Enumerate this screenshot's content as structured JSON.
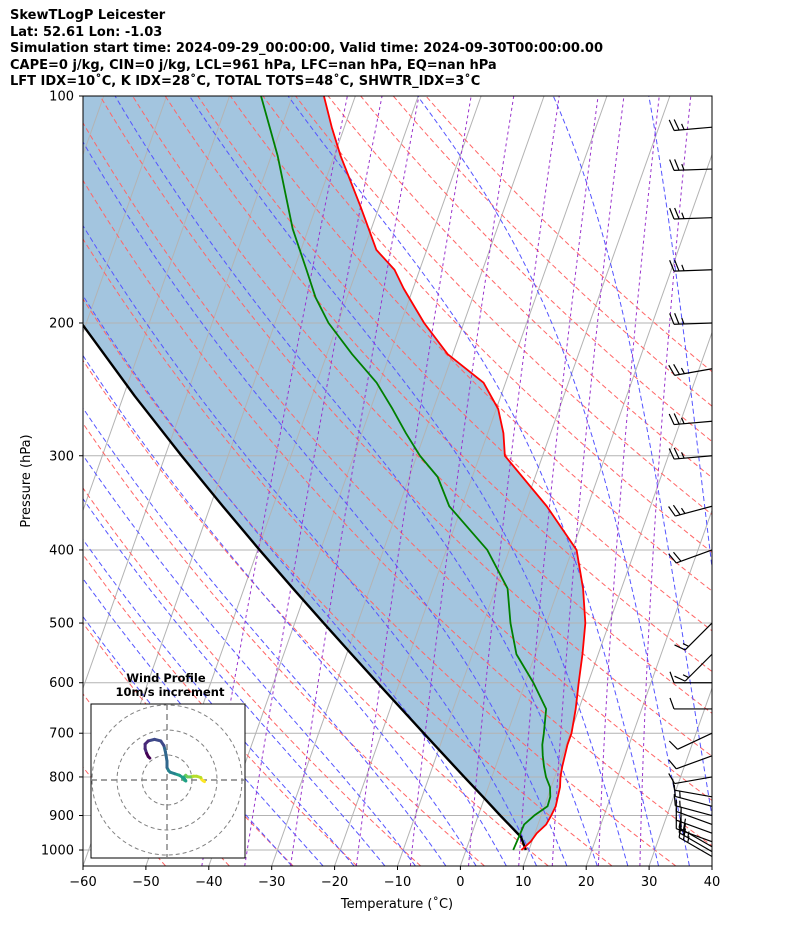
{
  "header": {
    "title": "SkewTLogP Leicester",
    "location": "Lat: 52.61   Lon: -1.03",
    "times": "Simulation start time: 2024-09-29_00:00:00, Valid time: 2024-09-30T00:00:00.00",
    "params": "CAPE=0 j/kg, CIN=0 j/kg, LCL=961 hPa, LFC=nan hPa, EQ=nan hPa",
    "indices": "LFT IDX=10˚C, K IDX=28˚C, TOTAL TOTS=48˚C, SHWTR_IDX=3˚C"
  },
  "chart_data": {
    "type": "line",
    "subtype": "skew-T log-P diagram",
    "xlabel": "Temperature (˚C)",
    "ylabel": "Pressure (hPa)",
    "xlim": [
      -60,
      40
    ],
    "ylim": [
      1050,
      100
    ],
    "y_scale": "log",
    "x_ticks": [
      "−60",
      "−50",
      "−40",
      "−30",
      "−20",
      "−10",
      "0",
      "10",
      "20",
      "30",
      "40"
    ],
    "x_tick_values": [
      -60,
      -50,
      -40,
      -30,
      -20,
      -10,
      0,
      10,
      20,
      30,
      40
    ],
    "y_ticks": [
      "100",
      "200",
      "300",
      "400",
      "500",
      "600",
      "700",
      "800",
      "900",
      "1000"
    ],
    "y_tick_values": [
      100,
      200,
      300,
      400,
      500,
      600,
      700,
      800,
      900,
      1000
    ],
    "grid": true,
    "colors": {
      "temperature": "#ff0000",
      "dewpoint": "#008000",
      "parcel": "#000000",
      "cape_fill": "#a3c5df",
      "dry_adiabat": "#ff6666",
      "moist_adiabat": "#5555ff",
      "mixing_ratio": "#9933cc",
      "isotherm": "#b3b3b3"
    },
    "series": [
      {
        "role": "temperature",
        "points": [
          [
            1000,
            8.8
          ],
          [
            975,
            9.8
          ],
          [
            950,
            10.3
          ],
          [
            925,
            11.3
          ],
          [
            900,
            11.6
          ],
          [
            875,
            11.8
          ],
          [
            850,
            11.6
          ],
          [
            825,
            11.4
          ],
          [
            800,
            10.9
          ],
          [
            775,
            10.6
          ],
          [
            750,
            10.4
          ],
          [
            725,
            10.2
          ],
          [
            700,
            10.2
          ],
          [
            650,
            9.5
          ],
          [
            600,
            8.5
          ],
          [
            550,
            7.5
          ],
          [
            500,
            6.2
          ],
          [
            450,
            3.9
          ],
          [
            400,
            0.7
          ],
          [
            350,
            -6.5
          ],
          [
            300,
            -16.0
          ],
          [
            280,
            -17.5
          ],
          [
            260,
            -19.7
          ],
          [
            240,
            -23.5
          ],
          [
            220,
            -30.8
          ],
          [
            200,
            -36.3
          ],
          [
            180,
            -41.5
          ],
          [
            170,
            -44.0
          ],
          [
            160,
            -48.0
          ],
          [
            140,
            -53.0
          ],
          [
            120,
            -59.0
          ],
          [
            110,
            -62.0
          ],
          [
            100,
            -65.0
          ]
        ]
      },
      {
        "role": "dewpoint",
        "points": [
          [
            1000,
            7.5
          ],
          [
            975,
            7.6
          ],
          [
            950,
            7.7
          ],
          [
            925,
            7.8
          ],
          [
            900,
            8.9
          ],
          [
            875,
            10.5
          ],
          [
            850,
            10.4
          ],
          [
            825,
            9.8
          ],
          [
            800,
            8.6
          ],
          [
            775,
            7.7
          ],
          [
            750,
            6.9
          ],
          [
            725,
            6.2
          ],
          [
            700,
            5.8
          ],
          [
            650,
            4.8
          ],
          [
            600,
            1.3
          ],
          [
            550,
            -3.0
          ],
          [
            500,
            -5.7
          ],
          [
            450,
            -8.1
          ],
          [
            400,
            -13.5
          ],
          [
            350,
            -22.0
          ],
          [
            320,
            -25.5
          ],
          [
            300,
            -29.5
          ],
          [
            280,
            -33.0
          ],
          [
            260,
            -36.5
          ],
          [
            240,
            -40.5
          ],
          [
            220,
            -46.0
          ],
          [
            200,
            -51.5
          ],
          [
            185,
            -55.0
          ],
          [
            170,
            -58.0
          ],
          [
            150,
            -62.5
          ],
          [
            120,
            -69.0
          ],
          [
            100,
            -75.0
          ]
        ]
      },
      {
        "role": "parcel",
        "points": [
          [
            1000,
            9.5
          ],
          [
            961,
            8.0
          ],
          [
            900,
            3.5
          ],
          [
            850,
            -0.3
          ],
          [
            800,
            -4.4
          ],
          [
            750,
            -8.7
          ],
          [
            700,
            -13.3
          ],
          [
            650,
            -18.2
          ],
          [
            600,
            -23.5
          ],
          [
            550,
            -29.2
          ],
          [
            500,
            -35.4
          ],
          [
            450,
            -42.2
          ],
          [
            400,
            -49.7
          ],
          [
            350,
            -58.0
          ],
          [
            300,
            -67.4
          ],
          [
            250,
            -78.2
          ],
          [
            200,
            -90.8
          ],
          [
            150,
            -106.0
          ],
          [
            100,
            -125.3
          ]
        ]
      }
    ],
    "reference_lines": {
      "dry_adiabats_theta_C": [
        -50,
        -40,
        -30,
        -20,
        -10,
        0,
        10,
        20,
        30,
        40,
        50,
        60,
        70,
        80,
        90,
        100,
        110,
        120,
        130,
        140,
        150,
        160
      ],
      "moist_adiabats_T1000_C": [
        -30,
        -25,
        -20,
        -15,
        -10,
        -5,
        0,
        5,
        10,
        15,
        20,
        25,
        30,
        35,
        40,
        45
      ],
      "mixing_ratio_g_kg": [
        0.1,
        0.2,
        0.4,
        1,
        2,
        4,
        7,
        10,
        16,
        24
      ]
    },
    "wind_barbs": [
      {
        "p": 1020,
        "speed_kt": 25,
        "dir_deg": 300
      },
      {
        "p": 1005,
        "speed_kt": 25,
        "dir_deg": 300
      },
      {
        "p": 990,
        "speed_kt": 20,
        "dir_deg": 300
      },
      {
        "p": 975,
        "speed_kt": 20,
        "dir_deg": 290
      },
      {
        "p": 950,
        "speed_kt": 20,
        "dir_deg": 290
      },
      {
        "p": 925,
        "speed_kt": 15,
        "dir_deg": 290
      },
      {
        "p": 900,
        "speed_kt": 15,
        "dir_deg": 285
      },
      {
        "p": 875,
        "speed_kt": 15,
        "dir_deg": 285
      },
      {
        "p": 850,
        "speed_kt": 10,
        "dir_deg": 280
      },
      {
        "p": 800,
        "speed_kt": 10,
        "dir_deg": 260
      },
      {
        "p": 750,
        "speed_kt": 10,
        "dir_deg": 250
      },
      {
        "p": 700,
        "speed_kt": 10,
        "dir_deg": 245
      },
      {
        "p": 650,
        "speed_kt": 10,
        "dir_deg": 270
      },
      {
        "p": 600,
        "speed_kt": 10,
        "dir_deg": 270
      },
      {
        "p": 550,
        "speed_kt": 15,
        "dir_deg": 225
      },
      {
        "p": 500,
        "speed_kt": 15,
        "dir_deg": 225
      },
      {
        "p": 400,
        "speed_kt": 20,
        "dir_deg": 250
      },
      {
        "p": 350,
        "speed_kt": 25,
        "dir_deg": 255
      },
      {
        "p": 300,
        "speed_kt": 25,
        "dir_deg": 265
      },
      {
        "p": 270,
        "speed_kt": 25,
        "dir_deg": 265
      },
      {
        "p": 230,
        "speed_kt": 25,
        "dir_deg": 260
      },
      {
        "p": 200,
        "speed_kt": 25,
        "dir_deg": 268
      },
      {
        "p": 170,
        "speed_kt": 25,
        "dir_deg": 268
      },
      {
        "p": 145,
        "speed_kt": 25,
        "dir_deg": 268
      },
      {
        "p": 125,
        "speed_kt": 25,
        "dir_deg": 268
      },
      {
        "p": 110,
        "speed_kt": 25,
        "dir_deg": 265
      }
    ],
    "hodograph": {
      "title": "Wind Profile",
      "subtitle": "10m/s increment",
      "rings_ms": [
        10,
        20,
        30
      ],
      "colormap": "viridis",
      "uv_ms": [
        [
          12,
          -0.5
        ],
        [
          11.5,
          -0.2
        ],
        [
          11,
          0.3
        ],
        [
          10.8,
          0.8
        ],
        [
          9.5,
          1.2
        ],
        [
          8.5,
          1.2
        ],
        [
          7.5,
          1.0
        ],
        [
          6.5,
          1.0
        ],
        [
          6.0,
          1.5
        ],
        [
          5.5,
          1.0
        ],
        [
          5.0,
          0.6
        ],
        [
          5.5,
          0.0
        ],
        [
          6.0,
          -0.3
        ],
        [
          5.5,
          0.5
        ],
        [
          4.0,
          1.5
        ],
        [
          2.5,
          2.0
        ],
        [
          1.0,
          2.5
        ],
        [
          0.5,
          3.0
        ],
        [
          0.0,
          4.0
        ],
        [
          0.0,
          6.0
        ],
        [
          -0.5,
          9.0
        ],
        [
          -1.0,
          11.0
        ],
        [
          -2.0,
          12.5
        ],
        [
          -4.0,
          13.0
        ],
        [
          -6.0,
          12.5
        ],
        [
          -7.0,
          11.5
        ],
        [
          -7.0,
          10.0
        ],
        [
          -6.5,
          8.5
        ],
        [
          -6.0,
          7.5
        ],
        [
          -5.5,
          7.0
        ]
      ]
    }
  }
}
